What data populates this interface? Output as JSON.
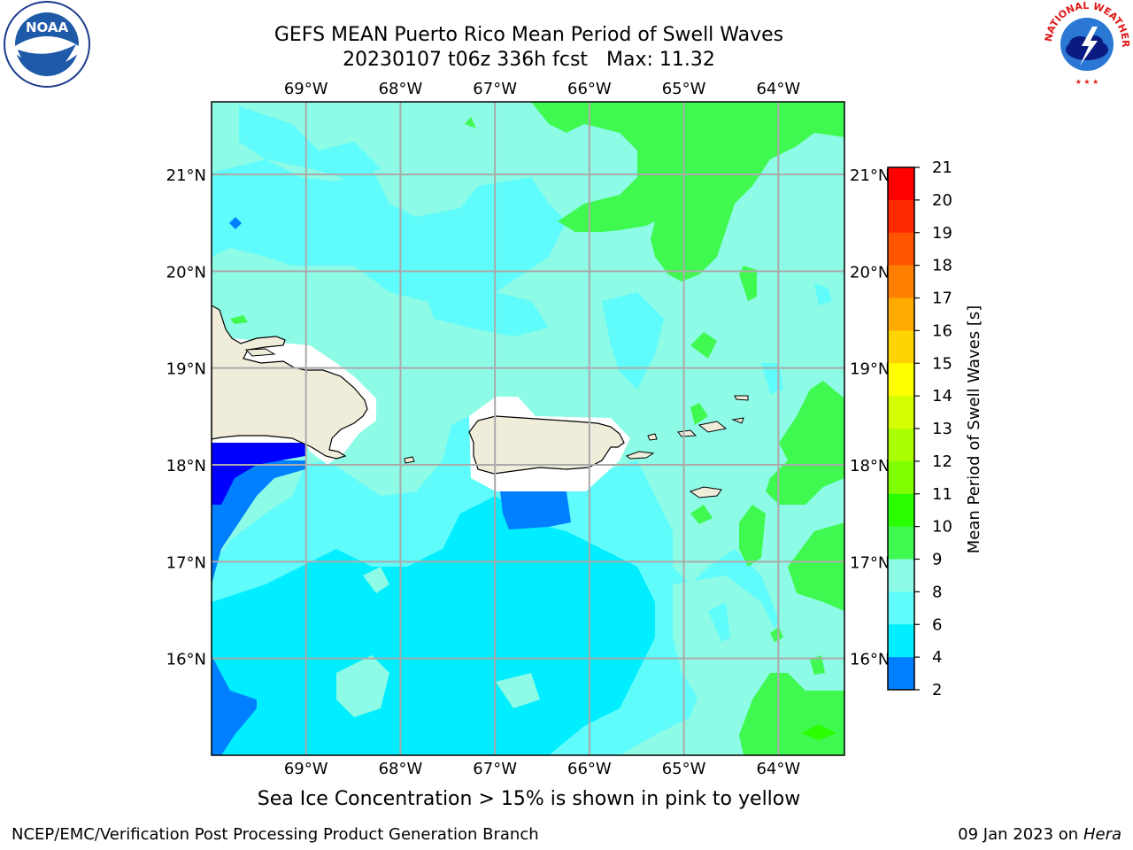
{
  "title": {
    "line1": "GEFS MEAN Puerto Rico Mean Period of Swell Waves",
    "run": "20230107 t06z 336h fcst",
    "max": "Max: 11.32"
  },
  "logos": {
    "left": "noaa-logo",
    "left_text": "NOAA",
    "right": "nws-logo",
    "right_text": "NATIONAL WEATHER SERVICE"
  },
  "map": {
    "lon_labels": [
      "69°W",
      "68°W",
      "67°W",
      "66°W",
      "65°W",
      "64°W"
    ],
    "lat_labels": [
      "21°N",
      "20°N",
      "19°N",
      "18°N",
      "17°N",
      "16°N"
    ],
    "lon_values": [
      -69,
      -68,
      -67,
      -66,
      -65,
      -64
    ],
    "lat_values": [
      21,
      20,
      19,
      18,
      17,
      16
    ],
    "lon_range": [
      -70,
      -63.3
    ],
    "lat_range": [
      15,
      21.75
    ],
    "grid": true,
    "background_color": "#8dfbe6"
  },
  "colorbar": {
    "label": "Mean Period of Swell Waves [s]",
    "ticks": [
      "21",
      "20",
      "19",
      "18",
      "17",
      "16",
      "15",
      "14",
      "13",
      "12",
      "11",
      "10",
      "9",
      "8",
      "6",
      "4",
      "2"
    ],
    "colors": [
      "#ff0000",
      "#ff2a00",
      "#ff5500",
      "#ff8000",
      "#ffaa00",
      "#ffd400",
      "#ffff00",
      "#d4ff00",
      "#aaff00",
      "#80ff00",
      "#2aff00",
      "#40f950",
      "#8dfbe6",
      "#5ffcfb",
      "#00eeff",
      "#0080ff",
      "#0000ff"
    ]
  },
  "caption": "Sea Ice Concentration > 15% is shown in pink to yellow",
  "footer": {
    "left": "NCEP/EMC/Verification Post Processing Product Generation Branch",
    "date": "09 Jan 2023 on",
    "machine": "Hera"
  }
}
